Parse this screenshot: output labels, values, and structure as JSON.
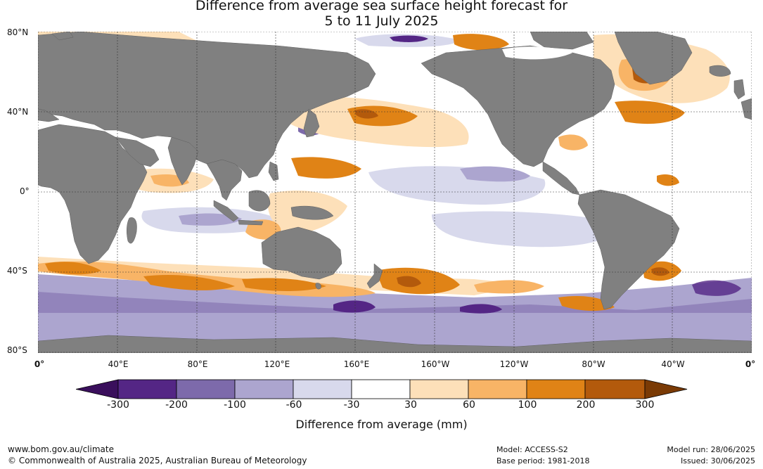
{
  "title": {
    "line1": "Difference from average sea surface height forecast for",
    "line2": "5 to 11 July 2025"
  },
  "map": {
    "latitude_labels": [
      "80°N",
      "40°N",
      "0°",
      "40°S",
      "80°S"
    ],
    "longitude_labels": [
      "0°",
      "40°E",
      "80°E",
      "120°E",
      "160°E",
      "160°W",
      "120°W",
      "80°W",
      "40°W",
      "0°"
    ],
    "land_color": "#808080",
    "ice_color": "#ffffff"
  },
  "colorbar": {
    "tick_labels": [
      "-300",
      "-200",
      "-100",
      "-60",
      "-30",
      "30",
      "60",
      "100",
      "200",
      "300"
    ],
    "colors": [
      "#3a0f5c",
      "#542685",
      "#7d6aab",
      "#aca5cf",
      "#d8d9ec",
      "#ffffff",
      "#fde0b9",
      "#f8b466",
      "#e08316",
      "#b35a0c",
      "#7a3a05"
    ],
    "title": "Difference from average (mm)"
  },
  "footer": {
    "website": "www.bom.gov.au/climate",
    "copyright": "© Commonwealth of Australia 2025, Australian Bureau of Meteorology",
    "model": "Model: ACCESS-S2",
    "base_period": "Base period: 1981-2018",
    "model_run": "Model run: 28/06/2025",
    "issued": "Issued: 30/06/2025"
  }
}
